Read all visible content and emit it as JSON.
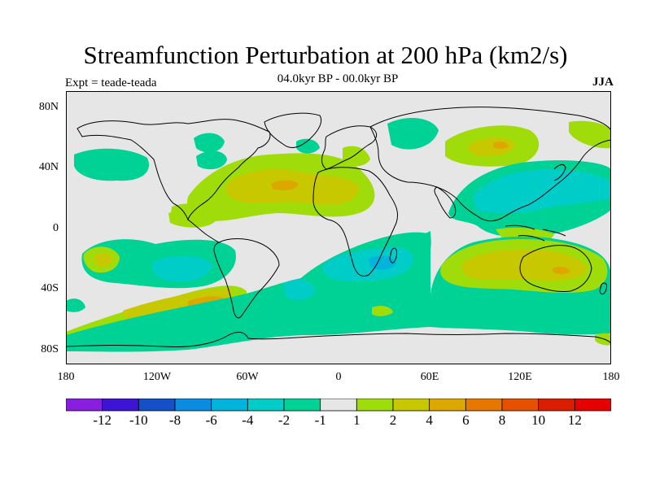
{
  "title": "Streamfunction Perturbation at 200 hPa (km2/s)",
  "subtitle": "04.0kyr BP - 00.0kyr BP",
  "expt_label": "Expt = teade-teada",
  "season": "JJA",
  "y_axis": {
    "labels": [
      "80N",
      "40N",
      "0",
      "40S",
      "80S"
    ],
    "values": [
      80,
      40,
      0,
      -40,
      -80
    ]
  },
  "x_axis": {
    "labels": [
      "180",
      "120W",
      "60W",
      "0",
      "60E",
      "120E",
      "180"
    ]
  },
  "colorbar": {
    "colors": [
      "#8a1ee0",
      "#3c14d4",
      "#1450c8",
      "#0a8ce0",
      "#00b4dc",
      "#00ccc8",
      "#00d296",
      "#e6e6e6",
      "#a0dc0a",
      "#c8c800",
      "#dca800",
      "#e67800",
      "#e65000",
      "#dc1e00",
      "#e60000"
    ],
    "labels": [
      "-12",
      "-10",
      "-8",
      "-6",
      "-4",
      "-2",
      "-1",
      "1",
      "2",
      "4",
      "6",
      "8",
      "10",
      "12"
    ]
  }
}
